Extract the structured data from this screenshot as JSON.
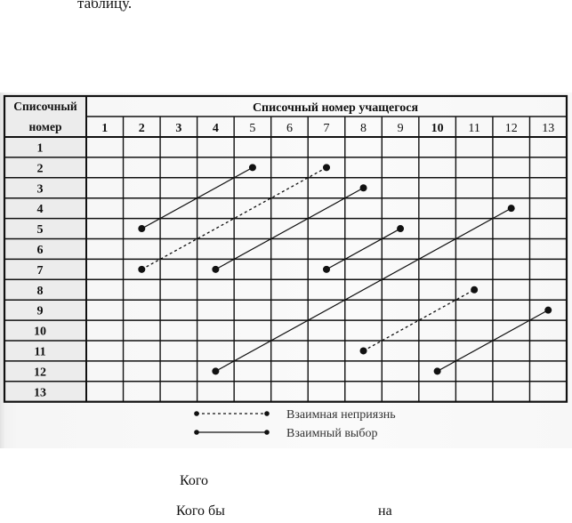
{
  "page": {
    "top_text": "таблицу.",
    "bottom_line1": "Кого",
    "bottom_line2_a": "Кого бы",
    "bottom_line2_b": "на"
  },
  "table": {
    "header_left": [
      "Списочный",
      "номер"
    ],
    "header_top": "Списочный номер учащегося",
    "columns": [
      "1",
      "2",
      "3",
      "4",
      "5",
      "6",
      "7",
      "8",
      "9",
      "10",
      "11",
      "12",
      "13"
    ],
    "rows": [
      "1",
      "2",
      "3",
      "4",
      "5",
      "6",
      "7",
      "8",
      "9",
      "10",
      "11",
      "12",
      "13"
    ]
  },
  "legend": {
    "dislike": "Взаимная неприязнь",
    "mutual": "Взаимный выбор"
  },
  "colors": {
    "ink": "#111111",
    "row_grey": "#d6d6d6"
  },
  "chart_data": {
    "type": "table",
    "mutual_choices": [
      {
        "from": [
          5,
          2
        ],
        "to": [
          2,
          5
        ]
      },
      {
        "from": [
          7,
          4
        ],
        "to": [
          3,
          8
        ]
      },
      {
        "from": [
          7,
          7
        ],
        "to": [
          5,
          9
        ]
      },
      {
        "from": [
          12,
          4
        ],
        "to": [
          4,
          12
        ]
      },
      {
        "from": [
          12,
          10
        ],
        "to": [
          9,
          13
        ]
      }
    ],
    "mutual_dislikes": [
      {
        "from": [
          7,
          2
        ],
        "to": [
          2,
          7
        ]
      },
      {
        "from": [
          11,
          8
        ],
        "to": [
          8,
          11
        ]
      }
    ]
  }
}
